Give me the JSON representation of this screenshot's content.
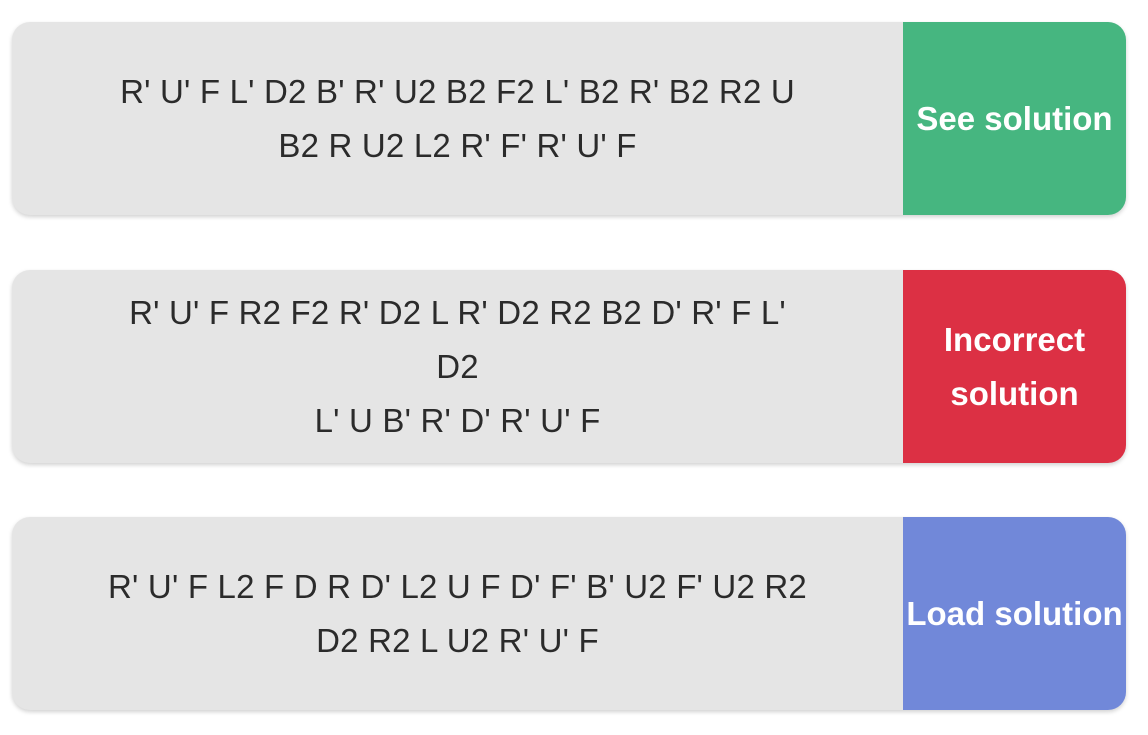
{
  "cards": [
    {
      "scramble_line1": "R' U' F L' D2 B' R' U2 B2 F2 L' B2 R' B2 R2 U",
      "scramble_line2": "B2 R U2 L2 R' F' R' U' F",
      "action_label": "See solution",
      "action_color": "#46b680"
    },
    {
      "scramble_line1": "R' U' F R2 F2 R' D2 L R' D2 R2 B2 D' R' F L' D2",
      "scramble_line2": "L' U B' R' D' R' U' F",
      "action_label_line1": "Incorrect",
      "action_label_line2": "solution",
      "action_color": "#dc3044"
    },
    {
      "scramble_line1": "R' U' F L2 F D R D' L2 U F D' F' B' U2 F' U2 R2",
      "scramble_line2": "D2 R2 L U2 R' U' F",
      "action_label": "Load solution",
      "action_color": "#7188d9"
    }
  ]
}
